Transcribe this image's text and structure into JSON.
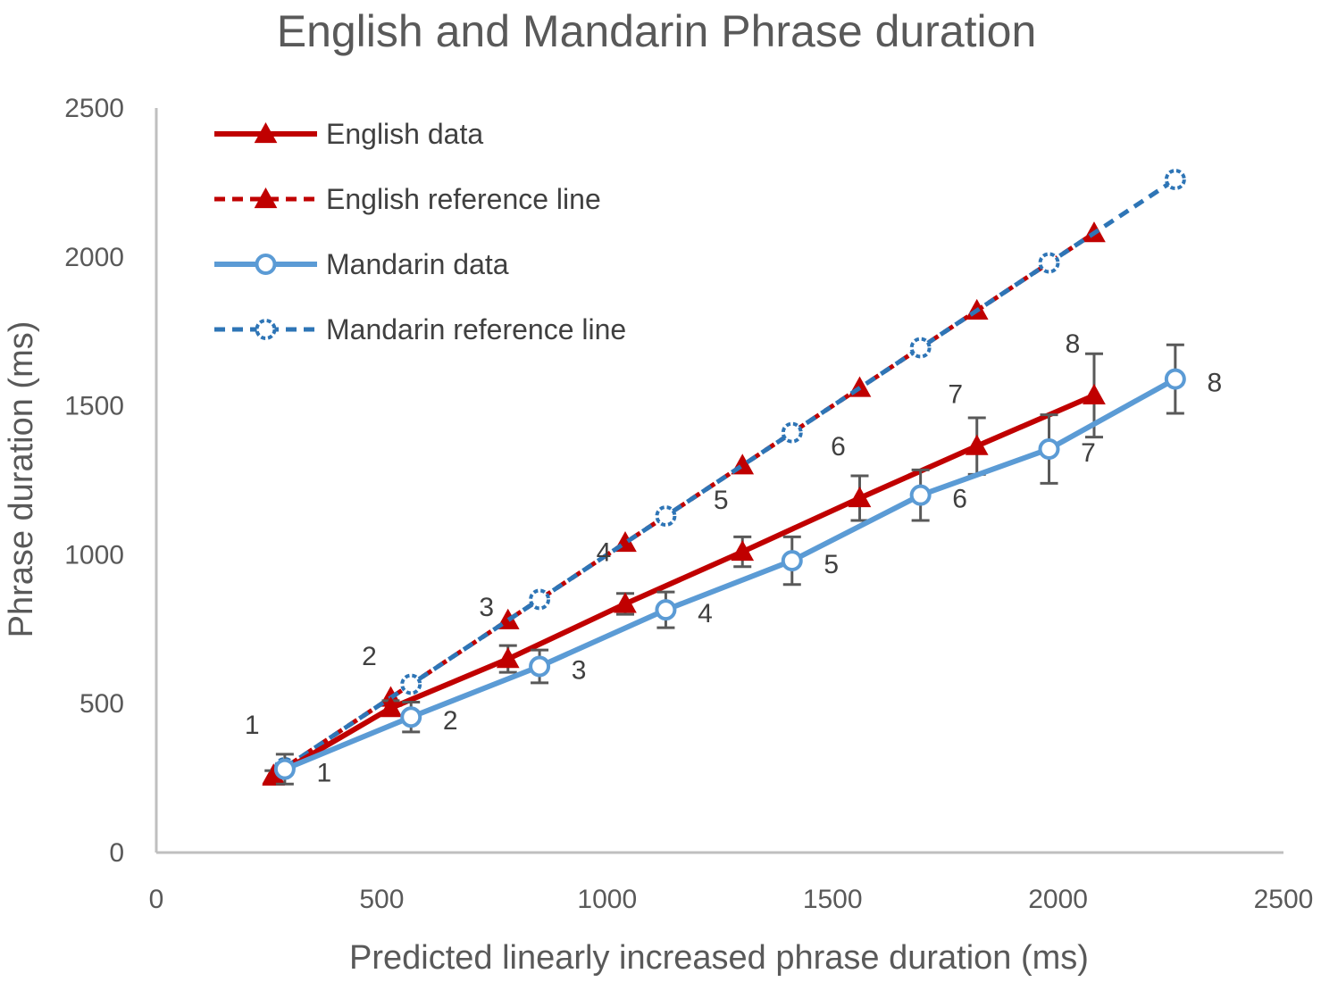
{
  "chart_data": {
    "type": "line",
    "title": "English and Mandarin Phrase duration",
    "xlabel": "Predicted linearly increased phrase duration (ms)",
    "ylabel": "Phrase duration (ms)",
    "xlim": [
      0,
      2500
    ],
    "ylim": [
      0,
      2500
    ],
    "xticks": [
      0,
      500,
      1000,
      1500,
      2000,
      2500
    ],
    "yticks": [
      0,
      500,
      1000,
      1500,
      2000,
      2500
    ],
    "grid": false,
    "legend_position": "top-left",
    "series": [
      {
        "name": "English data",
        "color": "#C00000",
        "style": "solid",
        "marker": "triangle",
        "points": [
          {
            "x": 260,
            "y": 255,
            "err": 20,
            "label": "1"
          },
          {
            "x": 520,
            "y": 485,
            "err": 25,
            "label": "2"
          },
          {
            "x": 780,
            "y": 650,
            "err": 45,
            "label": "3"
          },
          {
            "x": 1040,
            "y": 835,
            "err": 35,
            "label": "4"
          },
          {
            "x": 1300,
            "y": 1010,
            "err": 50,
            "label": "5"
          },
          {
            "x": 1560,
            "y": 1190,
            "err": 75,
            "label": "6"
          },
          {
            "x": 1820,
            "y": 1365,
            "err": 95,
            "label": "7"
          },
          {
            "x": 2080,
            "y": 1535,
            "err": 140,
            "label": "8"
          }
        ]
      },
      {
        "name": "English reference line",
        "color": "#C00000",
        "style": "dashed",
        "marker": "triangle",
        "points": [
          {
            "x": 260,
            "y": 260
          },
          {
            "x": 520,
            "y": 520
          },
          {
            "x": 780,
            "y": 780
          },
          {
            "x": 1040,
            "y": 1040
          },
          {
            "x": 1300,
            "y": 1300
          },
          {
            "x": 1560,
            "y": 1560
          },
          {
            "x": 1820,
            "y": 1820
          },
          {
            "x": 2080,
            "y": 2080
          }
        ]
      },
      {
        "name": "Mandarin data",
        "color": "#5B9BD5",
        "style": "solid",
        "marker": "circle",
        "points": [
          {
            "x": 285,
            "y": 280,
            "err": 50,
            "label": "1"
          },
          {
            "x": 565,
            "y": 455,
            "err": 50,
            "label": "2"
          },
          {
            "x": 850,
            "y": 625,
            "err": 55,
            "label": "3"
          },
          {
            "x": 1130,
            "y": 815,
            "err": 60,
            "label": "4"
          },
          {
            "x": 1410,
            "y": 980,
            "err": 80,
            "label": "5"
          },
          {
            "x": 1695,
            "y": 1200,
            "err": 85,
            "label": "6"
          },
          {
            "x": 1980,
            "y": 1355,
            "err": 115,
            "label": "7"
          },
          {
            "x": 2260,
            "y": 1590,
            "err": 115,
            "label": "8"
          }
        ]
      },
      {
        "name": "Mandarin reference line",
        "color": "#2E75B6",
        "style": "dashed",
        "marker": "circle",
        "points": [
          {
            "x": 285,
            "y": 285
          },
          {
            "x": 565,
            "y": 565
          },
          {
            "x": 850,
            "y": 850
          },
          {
            "x": 1130,
            "y": 1130
          },
          {
            "x": 1410,
            "y": 1410
          },
          {
            "x": 1695,
            "y": 1695
          },
          {
            "x": 1980,
            "y": 1980
          },
          {
            "x": 2260,
            "y": 2260
          }
        ]
      }
    ],
    "errorbar_color": "#595959",
    "axis_color": "#BFBFBF"
  }
}
